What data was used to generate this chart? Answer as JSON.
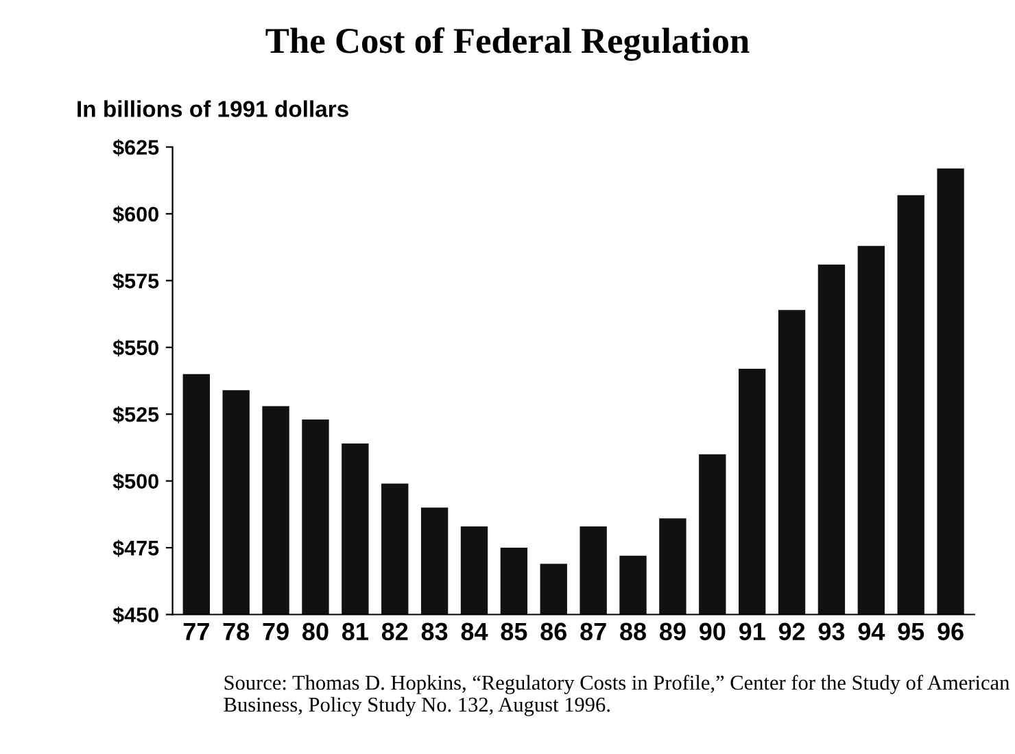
{
  "chart_data": {
    "type": "bar",
    "title": "The Cost of Federal Regulation",
    "ylabel": "In billions of 1991 dollars",
    "categories": [
      "77",
      "78",
      "79",
      "80",
      "81",
      "82",
      "83",
      "84",
      "85",
      "86",
      "87",
      "88",
      "89",
      "90",
      "91",
      "92",
      "93",
      "94",
      "95",
      "96"
    ],
    "values": [
      540,
      534,
      528,
      523,
      514,
      499,
      490,
      483,
      475,
      469,
      483,
      472,
      486,
      510,
      542,
      564,
      581,
      588,
      607,
      617
    ],
    "color": "#111111",
    "ylim": [
      450,
      625
    ],
    "yticks": [
      {
        "value": 450,
        "label": "$450"
      },
      {
        "value": 475,
        "label": "$475"
      },
      {
        "value": 500,
        "label": "$500"
      },
      {
        "value": 525,
        "label": "$525"
      },
      {
        "value": 550,
        "label": "$550"
      },
      {
        "value": 575,
        "label": "$575"
      },
      {
        "value": 600,
        "label": "$600"
      },
      {
        "value": 625,
        "label": "$625"
      }
    ],
    "grid": false,
    "annotations": [
      "Source: Thomas D. Hopkins, “Regulatory Costs in Profile,” Center for the Study of American Business, Policy Study No. 132, August 1996."
    ]
  }
}
